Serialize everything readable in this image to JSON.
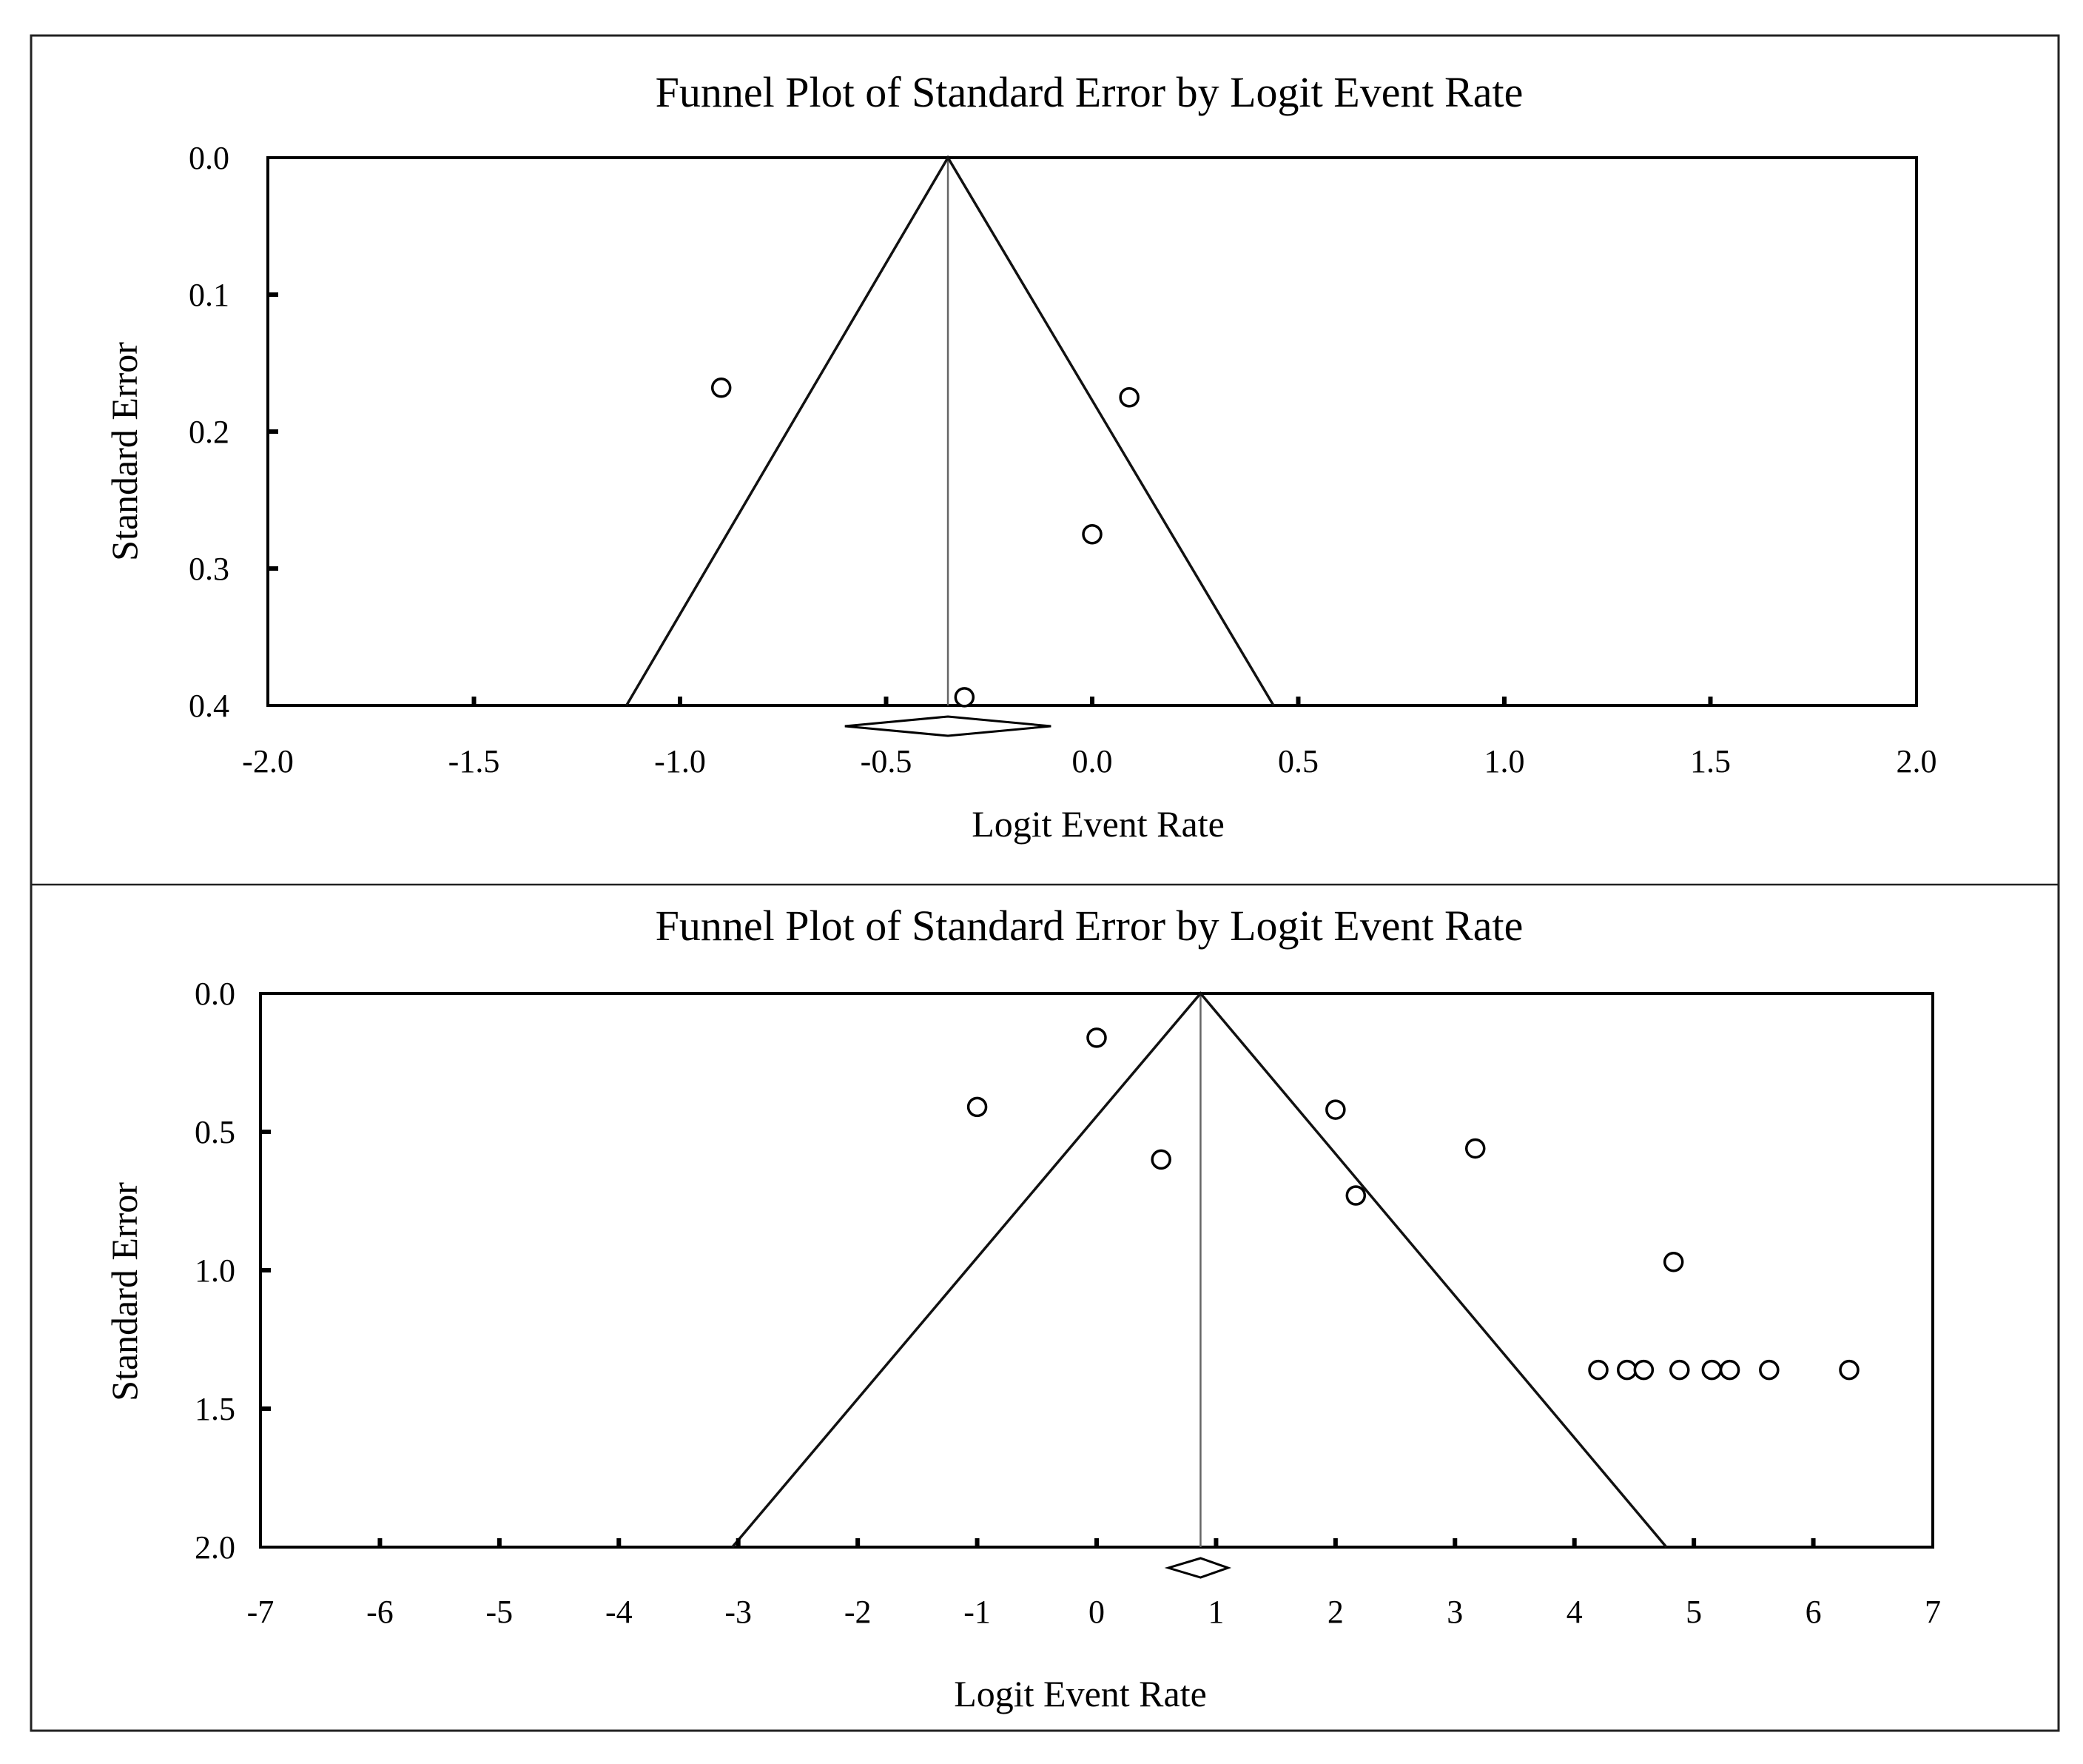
{
  "chart_data": [
    {
      "type": "scatter",
      "title": "Funnel Plot of Standard Error by Logit Event Rate",
      "xlabel": "Logit Event Rate",
      "ylabel": "Standard Error",
      "xlim": [
        -2.0,
        2.0
      ],
      "ylim": [
        0.0,
        0.4
      ],
      "y_inverted": true,
      "x_ticks": [
        "-2.0",
        "-1.5",
        "-1.0",
        "-0.5",
        "0.0",
        "0.5",
        "1.0",
        "1.5",
        "2.0"
      ],
      "y_ticks": [
        "0.0",
        "0.1",
        "0.2",
        "0.3",
        "0.4"
      ],
      "summary_effect": -0.35,
      "summary_ci": [
        -0.6,
        -0.1
      ],
      "funnel_bottom": [
        -1.13,
        0.44
      ],
      "points": [
        {
          "x": -0.9,
          "y": 0.168
        },
        {
          "x": 0.09,
          "y": 0.175
        },
        {
          "x": 0.0,
          "y": 0.275
        },
        {
          "x": -0.31,
          "y": 0.394
        }
      ]
    },
    {
      "type": "scatter",
      "title": "Funnel Plot of Standard Error by Logit Event Rate",
      "xlabel": "Logit Event Rate",
      "ylabel": "Standard Error",
      "xlim": [
        -7,
        7
      ],
      "ylim": [
        0.0,
        2.0
      ],
      "y_inverted": true,
      "x_ticks": [
        "-7",
        "-6",
        "-5",
        "-4",
        "-3",
        "-2",
        "-1",
        "0",
        "1",
        "2",
        "3",
        "4",
        "5",
        "6",
        "7"
      ],
      "y_ticks": [
        "0.0",
        "0.5",
        "1.0",
        "1.5",
        "2.0"
      ],
      "summary_effect": 0.87,
      "summary_ci": [
        0.6,
        1.1
      ],
      "funnel_bottom": [
        -3.05,
        4.77
      ],
      "points": [
        {
          "x": 0.0,
          "y": 0.16
        },
        {
          "x": -1.0,
          "y": 0.41
        },
        {
          "x": 0.54,
          "y": 0.6
        },
        {
          "x": 2.0,
          "y": 0.42
        },
        {
          "x": 3.17,
          "y": 0.56
        },
        {
          "x": 2.17,
          "y": 0.73
        },
        {
          "x": 4.83,
          "y": 0.97
        },
        {
          "x": 4.2,
          "y": 1.36
        },
        {
          "x": 4.44,
          "y": 1.36
        },
        {
          "x": 4.58,
          "y": 1.36
        },
        {
          "x": 4.88,
          "y": 1.36
        },
        {
          "x": 5.15,
          "y": 1.36
        },
        {
          "x": 5.3,
          "y": 1.36
        },
        {
          "x": 5.63,
          "y": 1.36
        },
        {
          "x": 6.3,
          "y": 1.36
        }
      ]
    }
  ]
}
